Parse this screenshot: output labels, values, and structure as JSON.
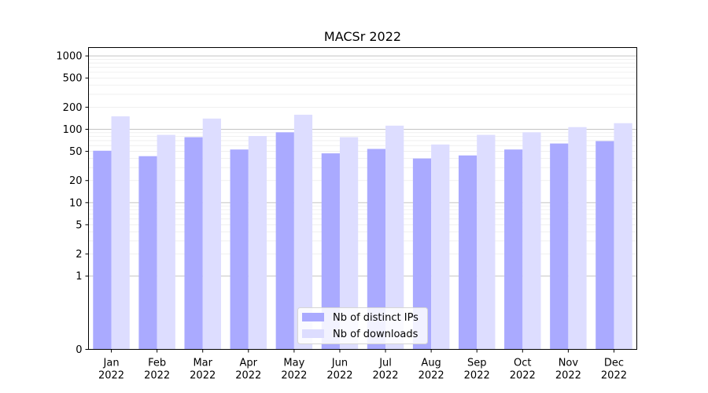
{
  "chart_data": {
    "type": "bar",
    "title": "MACSr 2022",
    "xlabel": "",
    "ylabel": "",
    "yscale": "symlog",
    "ylim": [
      0,
      1300
    ],
    "yticks": [
      0,
      1,
      2,
      5,
      10,
      20,
      50,
      100,
      200,
      500,
      1000
    ],
    "categories": [
      "Jan\n2022",
      "Feb\n2022",
      "Mar\n2022",
      "Apr\n2022",
      "May\n2022",
      "Jun\n2022",
      "Jul\n2022",
      "Aug\n2022",
      "Sep\n2022",
      "Oct\n2022",
      "Nov\n2022",
      "Dec\n2022"
    ],
    "series": [
      {
        "name": "Nb of distinct IPs",
        "color": "#aaaaff",
        "values": [
          51,
          43,
          78,
          53,
          91,
          47,
          54,
          40,
          44,
          53,
          64,
          69
        ]
      },
      {
        "name": "Nb of downloads",
        "color": "#ddddff",
        "values": [
          150,
          84,
          140,
          81,
          158,
          78,
          112,
          62,
          84,
          91,
          107,
          121
        ]
      }
    ],
    "grid": true,
    "legend": "bottom-center"
  }
}
